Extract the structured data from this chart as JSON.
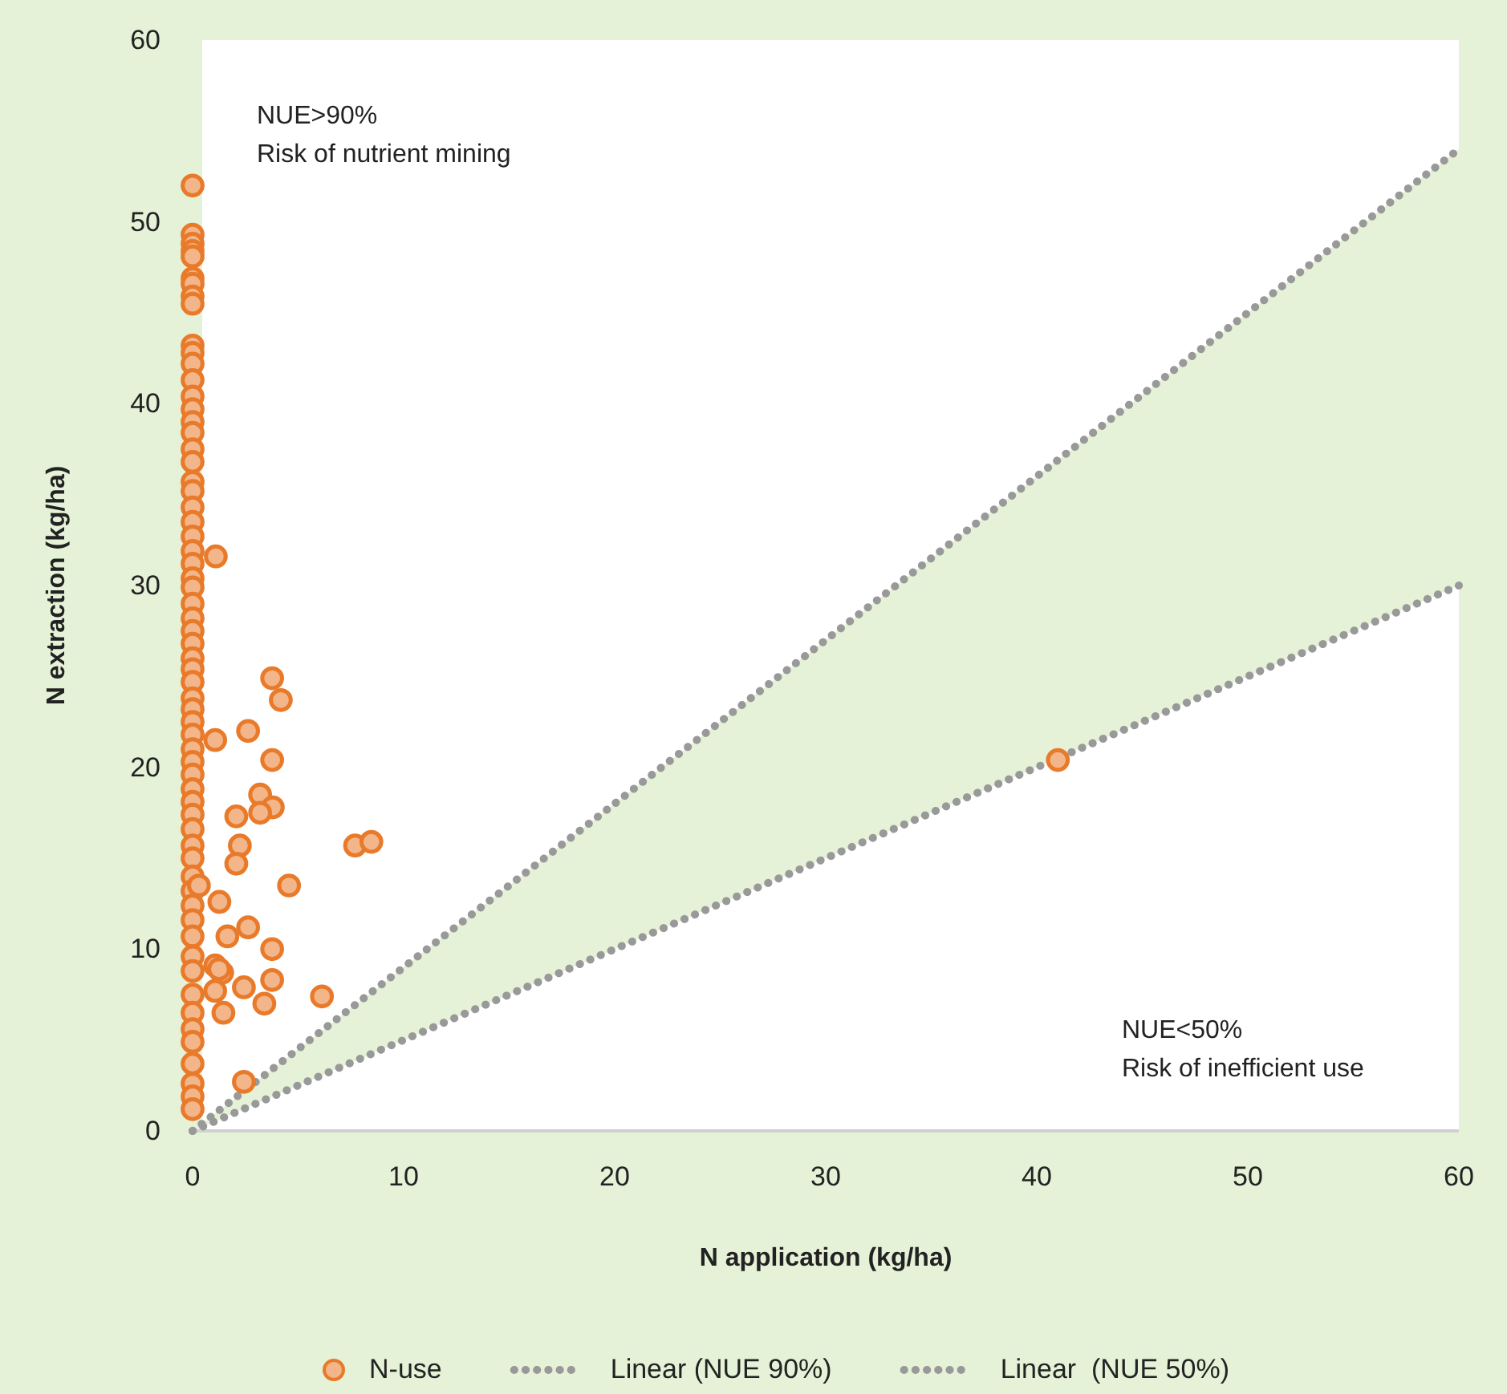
{
  "chart_data": {
    "type": "scatter",
    "xlabel": "N application (kg/ha)",
    "ylabel": "N extraction (kg/ha)",
    "xlim": [
      0,
      60
    ],
    "ylim": [
      0,
      60
    ],
    "xticks": [
      0,
      10,
      20,
      30,
      40,
      50,
      60
    ],
    "yticks": [
      0,
      10,
      20,
      30,
      40,
      50,
      60
    ],
    "grid": false,
    "legend": "bottom",
    "annotations": [
      "NUE>90%\nRisk of nutrient mining",
      "NUE<50%\nRisk of inefficient use"
    ],
    "series": [
      {
        "type": "line",
        "name": "Linear (NUE 90%)",
        "color": "#999999",
        "marker": "none",
        "line_style": "dotted",
        "x": [
          0,
          60
        ],
        "values": [
          0,
          54
        ],
        "lower": [
          0,
          30
        ],
        "upper": [
          0,
          54
        ]
      },
      {
        "type": "line",
        "name": "Linear  (NUE 50%)",
        "color": "#999999",
        "marker": "none",
        "line_style": "dotted",
        "x": [
          0,
          60
        ],
        "values": [
          0,
          30
        ]
      },
      {
        "name": "N-use",
        "color": "#e87a2a",
        "marker": "circle",
        "x": [
          0,
          0,
          0,
          0,
          0,
          0,
          0,
          0,
          0,
          0,
          0,
          0,
          0,
          0,
          0,
          0,
          0,
          0,
          0,
          0,
          0,
          0,
          0,
          0,
          0,
          0,
          0,
          0,
          0,
          0,
          0,
          0,
          0,
          0,
          0,
          0,
          0,
          0,
          0,
          0,
          0,
          0,
          0,
          0,
          0,
          0,
          0,
          0,
          0,
          0,
          0,
          0,
          0,
          0,
          0,
          0,
          0,
          0,
          0,
          0,
          0,
          0,
          0,
          3.77,
          4.18,
          1.07,
          2.63,
          3.77,
          3.2,
          3.8,
          3.2,
          2.07,
          2.24,
          2.07,
          7.7,
          8.47,
          4.57,
          0.3,
          1.27,
          2.63,
          1.65,
          3.77,
          1.07,
          1.4,
          1.25,
          3.77,
          6.13,
          2.43,
          1.07,
          3.4,
          1.46,
          2.43,
          41,
          1.1
        ],
        "values": [
          52.0,
          49.3,
          48.8,
          48.4,
          48.1,
          46.9,
          46.6,
          45.9,
          45.5,
          43.2,
          42.8,
          42.2,
          41.3,
          40.4,
          39.7,
          39.0,
          38.4,
          37.5,
          36.8,
          35.7,
          35.2,
          34.3,
          33.5,
          32.7,
          31.9,
          31.2,
          30.4,
          29.9,
          29.0,
          28.2,
          27.5,
          26.8,
          26.0,
          25.4,
          24.7,
          23.8,
          23.2,
          22.5,
          21.8,
          21.0,
          20.3,
          19.6,
          18.8,
          18.1,
          17.4,
          16.6,
          15.7,
          15.0,
          14.0,
          13.2,
          12.4,
          11.6,
          10.7,
          9.6,
          8.8,
          7.5,
          6.5,
          5.6,
          4.9,
          3.7,
          2.6,
          1.9,
          1.2,
          24.9,
          23.7,
          21.5,
          22.0,
          20.4,
          18.5,
          17.8,
          17.5,
          17.3,
          15.7,
          14.7,
          15.7,
          15.9,
          13.5,
          13.5,
          12.6,
          11.2,
          10.7,
          10.0,
          9.1,
          8.7,
          8.9,
          8.3,
          7.4,
          7.9,
          7.7,
          7.0,
          6.5,
          2.7,
          20.4,
          31.6
        ]
      }
    ]
  }
}
